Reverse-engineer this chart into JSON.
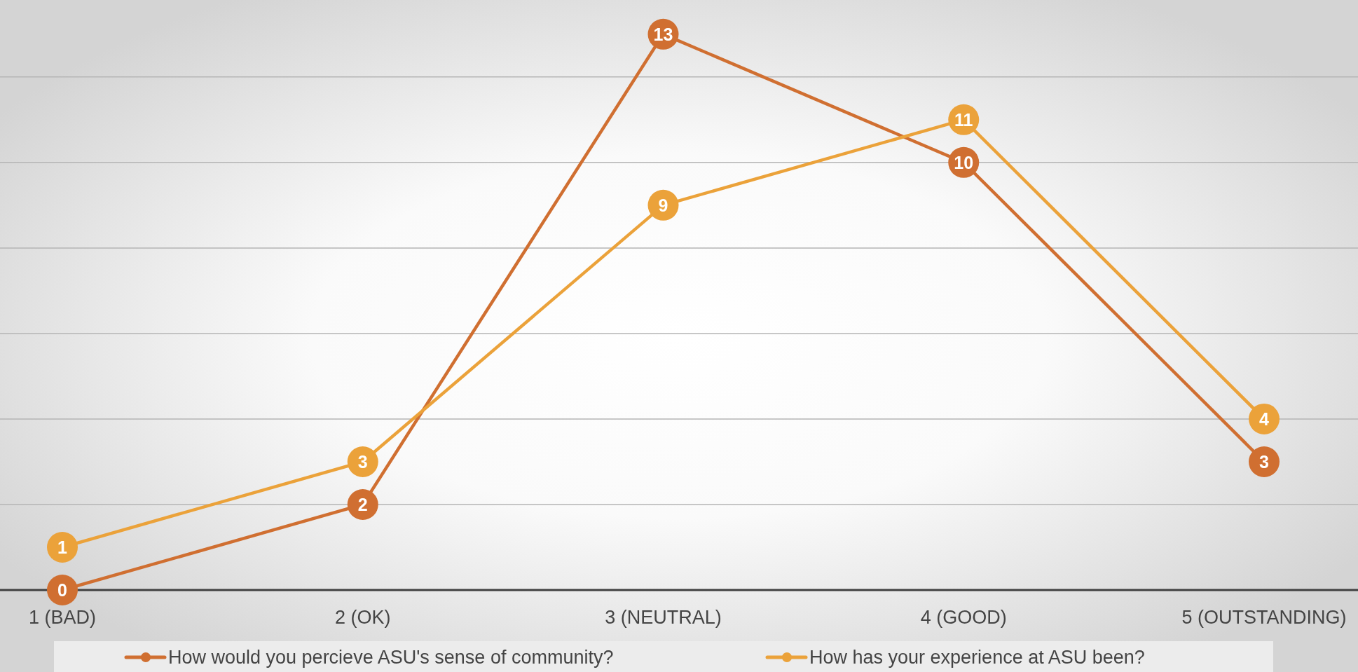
{
  "chart_data": {
    "type": "line",
    "categories": [
      "1 (BAD)",
      "2 (OK)",
      "3 (NEUTRAL)",
      "4 (GOOD)",
      "5 (OUTSTANDING)"
    ],
    "series": [
      {
        "name": "How would you percieve ASU's sense of community?",
        "color": "#d06f31",
        "values": [
          0,
          2,
          13,
          10,
          3
        ]
      },
      {
        "name": "How has your experience at ASU been?",
        "color": "#eba23a",
        "values": [
          1,
          3,
          9,
          11,
          4
        ]
      }
    ],
    "ylim": [
      0,
      13.8
    ],
    "yticks": [
      {
        "value": 0,
        "label": null
      },
      {
        "value": 2,
        "label": null
      },
      {
        "value": 4,
        "label": null
      },
      {
        "value": 6,
        "label": null
      },
      {
        "value": 8,
        "label": null
      },
      {
        "value": 10,
        "label": null
      },
      {
        "value": 12,
        "label": null
      }
    ],
    "tick_labels": "x",
    "grid": "y",
    "data_labels": true,
    "marker": "circle",
    "legend": "bottom"
  }
}
